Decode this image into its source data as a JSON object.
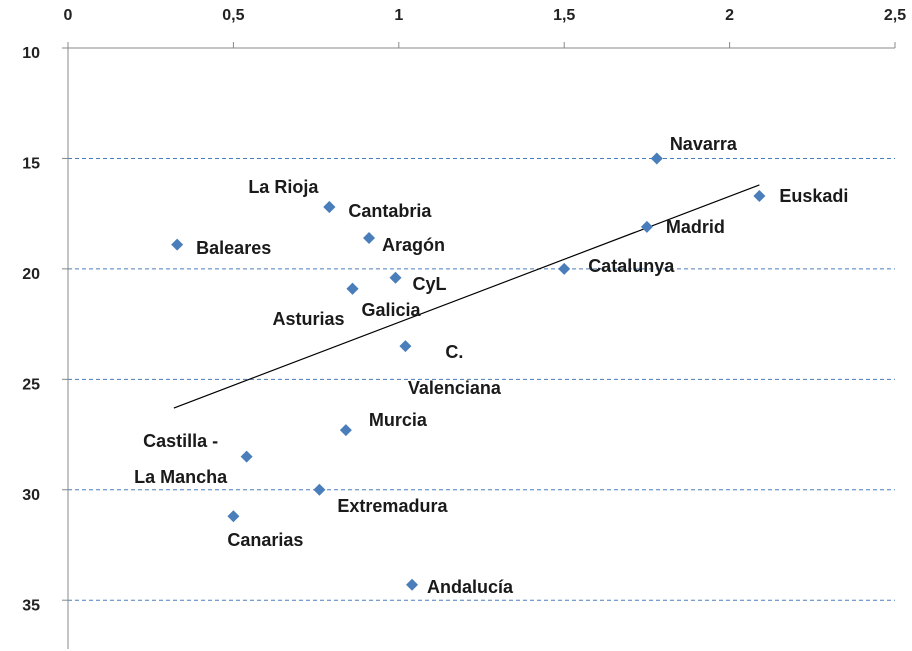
{
  "chart_data": {
    "type": "scatter",
    "xlim": [
      0,
      2.5
    ],
    "xticks": [
      0,
      {
        "value": 0.5,
        "label": "0,5"
      },
      1,
      {
        "value": 1.5,
        "label": "1,5"
      },
      2,
      {
        "value": 2.5,
        "label": "2,5"
      }
    ],
    "ylim": [
      10,
      37.3
    ],
    "yticks": [
      10,
      15,
      20,
      25,
      30,
      35
    ],
    "y_inverted": true,
    "grid": true,
    "color": "#4a7ebb",
    "names": [
      "Navarra",
      "Euskadi",
      "Madrid",
      "Catalunya",
      "La Rioja",
      "Cantabria",
      "Baleares",
      "Aragón",
      "CyL",
      "Asturias",
      "Galicia",
      "C.\nValenciana",
      "Murcia",
      "Castilla  -\nLa Mancha",
      "Extremadura",
      "Canarias",
      "Andalucía"
    ],
    "x": [
      1.78,
      2.09,
      1.75,
      1.5,
      0.79,
      0.79,
      0.33,
      0.91,
      0.99,
      0.86,
      0.86,
      1.02,
      0.84,
      0.54,
      0.76,
      0.5,
      1.04
    ],
    "y": [
      15.0,
      16.7,
      18.1,
      20.0,
      17.2,
      17.2,
      18.9,
      18.6,
      20.4,
      20.9,
      20.9,
      23.5,
      27.3,
      28.5,
      30.0,
      31.2,
      34.3
    ],
    "trendline": {
      "x": [
        0.32,
        2.09
      ],
      "y": [
        26.3,
        16.2
      ],
      "color": "#000000"
    }
  }
}
